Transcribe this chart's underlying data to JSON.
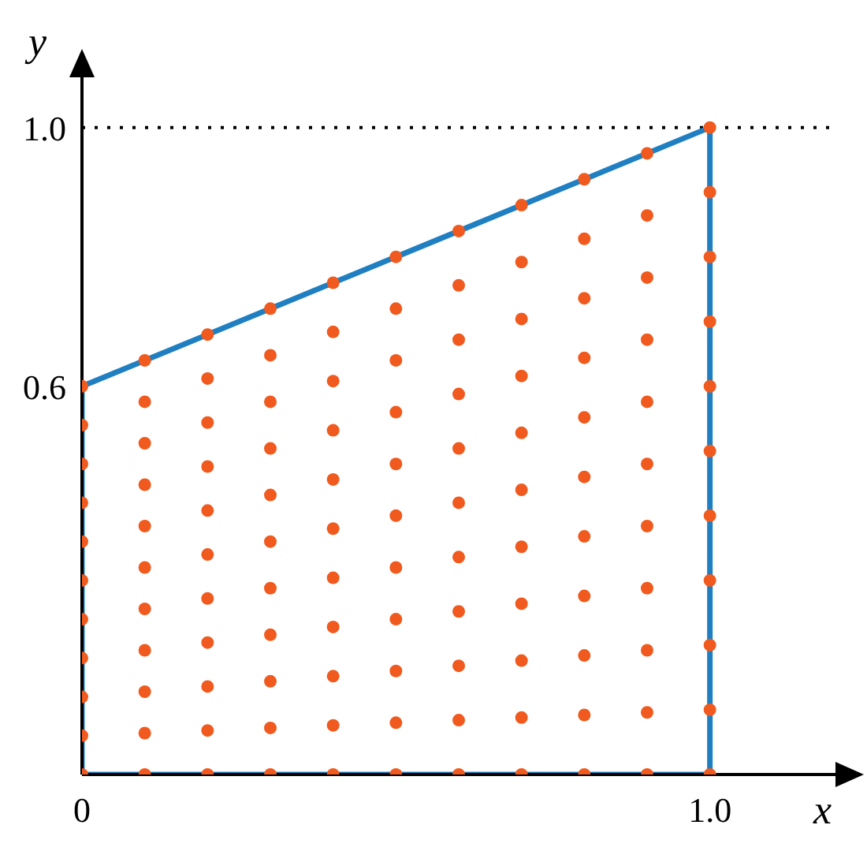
{
  "chart_data": {
    "type": "scatter",
    "xlabel": "x",
    "ylabel": "y",
    "xlim": [
      0,
      1.2
    ],
    "ylim": [
      0,
      1.08
    ],
    "xticks": [
      0,
      {
        "value": 1.0,
        "label": "1.0"
      }
    ],
    "yticks": [
      {
        "value": 0.6,
        "label": "0.6"
      },
      {
        "value": 1.0,
        "label": "1.0"
      }
    ],
    "ref_lines": [
      {
        "axis": "y",
        "value": 1.0,
        "label": null,
        "color": "#000000",
        "line_style": "dotted"
      }
    ],
    "series": [
      {
        "type": "line",
        "color": "#1f7fc1",
        "line_style": "solid",
        "marker": "none",
        "x": [
          0,
          1
        ],
        "values": [
          0,
          0
        ]
      },
      {
        "type": "line",
        "color": "#1f7fc1",
        "line_style": "solid",
        "marker": "none",
        "x": [
          0,
          0
        ],
        "values": [
          0,
          0.6
        ]
      },
      {
        "type": "line",
        "color": "#1f7fc1",
        "line_style": "solid",
        "marker": "none",
        "x": [
          0,
          1
        ],
        "values": [
          0.6,
          1
        ]
      },
      {
        "type": "line",
        "color": "#1f7fc1",
        "line_style": "solid",
        "marker": "none",
        "x": [
          1,
          1
        ],
        "values": [
          0,
          1
        ]
      },
      {
        "type": "scatter",
        "color": "#f05a1e",
        "marker": "circle",
        "x": [
          0,
          0,
          0,
          0,
          0,
          0,
          0,
          0,
          0,
          0,
          0,
          0.1,
          0.1,
          0.1,
          0.1,
          0.1,
          0.1,
          0.1,
          0.1,
          0.1,
          0.1,
          0.1,
          0.2,
          0.2,
          0.2,
          0.2,
          0.2,
          0.2,
          0.2,
          0.2,
          0.2,
          0.2,
          0.2,
          0.3,
          0.3,
          0.3,
          0.3,
          0.3,
          0.3,
          0.3,
          0.3,
          0.3,
          0.3,
          0.3,
          0.4,
          0.4,
          0.4,
          0.4,
          0.4,
          0.4,
          0.4,
          0.4,
          0.4,
          0.4,
          0.4,
          0.5,
          0.5,
          0.5,
          0.5,
          0.5,
          0.5,
          0.5,
          0.5,
          0.5,
          0.5,
          0.5,
          0.6,
          0.6,
          0.6,
          0.6,
          0.6,
          0.6,
          0.6,
          0.6,
          0.6,
          0.6,
          0.6,
          0.7,
          0.7,
          0.7,
          0.7,
          0.7,
          0.7,
          0.7,
          0.7,
          0.7,
          0.7,
          0.7,
          0.8,
          0.8,
          0.8,
          0.8,
          0.8,
          0.8,
          0.8,
          0.8,
          0.8,
          0.8,
          0.8,
          0.9,
          0.9,
          0.9,
          0.9,
          0.9,
          0.9,
          0.9,
          0.9,
          0.9,
          0.9,
          0.9,
          1,
          1,
          1,
          1,
          1,
          1,
          1,
          1,
          1,
          1,
          1
        ],
        "values": [
          0,
          0.06,
          0.12,
          0.18,
          0.24,
          0.3,
          0.36,
          0.42,
          0.48,
          0.54,
          0.6,
          0,
          0.064,
          0.128,
          0.192,
          0.256,
          0.32,
          0.384,
          0.448,
          0.512,
          0.576,
          0.64,
          0,
          0.068,
          0.136,
          0.204,
          0.272,
          0.34,
          0.408,
          0.476,
          0.544,
          0.612,
          0.68,
          0,
          0.072,
          0.144,
          0.216,
          0.288,
          0.36,
          0.432,
          0.504,
          0.576,
          0.648,
          0.72,
          0,
          0.076,
          0.152,
          0.228,
          0.304,
          0.38,
          0.456,
          0.532,
          0.608,
          0.684,
          0.76,
          0,
          0.08,
          0.16,
          0.24,
          0.32,
          0.4,
          0.48,
          0.56,
          0.64,
          0.72,
          0.8,
          0,
          0.084,
          0.168,
          0.252,
          0.336,
          0.42,
          0.504,
          0.588,
          0.672,
          0.756,
          0.84,
          0,
          0.088,
          0.176,
          0.264,
          0.352,
          0.44,
          0.528,
          0.616,
          0.704,
          0.792,
          0.88,
          0,
          0.092,
          0.184,
          0.276,
          0.368,
          0.46,
          0.552,
          0.644,
          0.736,
          0.828,
          0.92,
          0,
          0.096,
          0.192,
          0.288,
          0.384,
          0.48,
          0.576,
          0.672,
          0.768,
          0.864,
          0.96,
          0,
          0.1,
          0.2,
          0.3,
          0.4,
          0.5,
          0.6,
          0.7,
          0.8,
          0.9,
          1
        ]
      }
    ]
  }
}
